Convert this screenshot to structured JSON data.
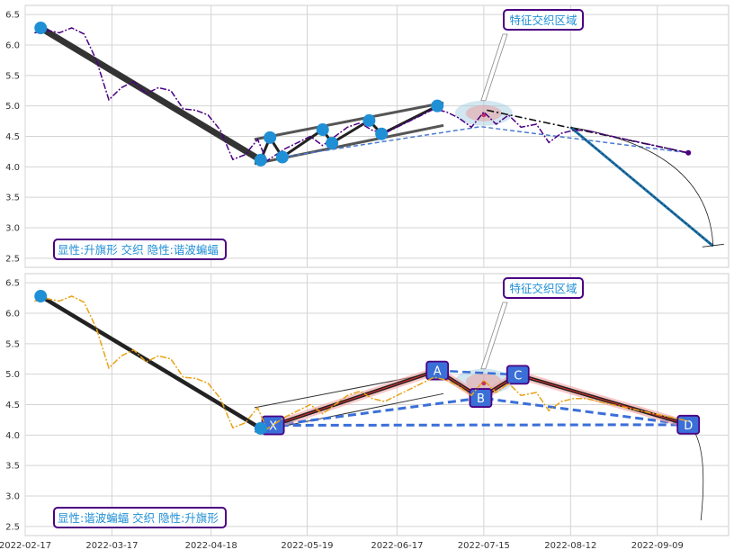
{
  "chart_data": [
    {
      "type": "line",
      "panel": "top",
      "ylim": [
        2.35,
        6.65
      ],
      "yticks": [
        "2.5",
        "3.0",
        "3.5",
        "4.0",
        "4.5",
        "5.0",
        "5.5",
        "6.0",
        "6.5"
      ],
      "grid": true,
      "annotation_box": "显性:升旗形 交织 隐性:谐波蝙蝠",
      "callout_label": "特征交织区域",
      "series": [
        {
          "style": "dashdot",
          "color": "#4b0082",
          "x": [
            "2022-02-20",
            "2022-02-24",
            "2022-02-28",
            "2022-03-04",
            "2022-03-08",
            "2022-03-12",
            "2022-03-16",
            "2022-03-20",
            "2022-03-24",
            "2022-03-28",
            "2022-04-01",
            "2022-04-05",
            "2022-04-09",
            "2022-04-13",
            "2022-04-17",
            "2022-04-21",
            "2022-04-25",
            "2022-04-29",
            "2022-05-03",
            "2022-05-06",
            "2022-05-09",
            "2022-05-12",
            "2022-05-16",
            "2022-05-20",
            "2022-05-24",
            "2022-05-28",
            "2022-06-01",
            "2022-06-05",
            "2022-06-09",
            "2022-06-13",
            "2022-06-17",
            "2022-06-21",
            "2022-06-25",
            "2022-06-29",
            "2022-07-03",
            "2022-07-07",
            "2022-07-11",
            "2022-07-15",
            "2022-07-19",
            "2022-07-23",
            "2022-07-27",
            "2022-08-01",
            "2022-08-05",
            "2022-08-09",
            "2022-08-13",
            "2022-08-17",
            "2022-08-21",
            "2022-09-19"
          ],
          "y": [
            6.2,
            6.24,
            6.2,
            6.28,
            6.18,
            5.75,
            5.1,
            5.3,
            5.4,
            5.2,
            5.3,
            5.25,
            4.95,
            4.93,
            4.85,
            4.6,
            4.12,
            4.2,
            4.45,
            4.1,
            4.2,
            4.3,
            4.4,
            4.5,
            4.35,
            4.5,
            4.65,
            4.72,
            4.6,
            4.55,
            4.65,
            4.75,
            4.85,
            4.95,
            4.9,
            4.8,
            4.65,
            4.9,
            4.7,
            4.85,
            4.65,
            4.7,
            4.4,
            4.55,
            4.6,
            4.6,
            4.55,
            4.23
          ]
        }
      ],
      "points": [
        {
          "x": "2022-02-22",
          "y": 6.28
        },
        {
          "x": "2022-05-04",
          "y": 4.11
        },
        {
          "x": "2022-05-07",
          "y": 4.48
        },
        {
          "x": "2022-05-11",
          "y": 4.16
        },
        {
          "x": "2022-05-24",
          "y": 4.61
        },
        {
          "x": "2022-05-27",
          "y": 4.39
        },
        {
          "x": "2022-06-08",
          "y": 4.76
        },
        {
          "x": "2022-06-12",
          "y": 4.54
        },
        {
          "x": "2022-06-30",
          "y": 5.0
        }
      ],
      "projection_end": {
        "x": "2022-09-27",
        "y": 2.7
      }
    },
    {
      "type": "line",
      "panel": "bottom",
      "xlim": [
        "2022-02-17",
        "2022-10-02"
      ],
      "xticks": [
        "2022-02-17",
        "2022-03-17",
        "2022-04-18",
        "2022-05-19",
        "2022-06-17",
        "2022-07-15",
        "2022-08-12",
        "2022-09-09"
      ],
      "ylim": [
        2.35,
        6.65
      ],
      "yticks": [
        "2.5",
        "3.0",
        "3.5",
        "4.0",
        "4.5",
        "5.0",
        "5.5",
        "6.0",
        "6.5"
      ],
      "grid": true,
      "annotation_box": "显性:谐波蝙蝠 交织 隐性:升旗形",
      "callout_label": "特征交织区域",
      "series": [
        {
          "style": "dashdot",
          "color": "#e8a317",
          "x": [
            "2022-02-20",
            "2022-02-24",
            "2022-02-28",
            "2022-03-04",
            "2022-03-08",
            "2022-03-12",
            "2022-03-16",
            "2022-03-20",
            "2022-03-24",
            "2022-03-28",
            "2022-04-01",
            "2022-04-05",
            "2022-04-09",
            "2022-04-13",
            "2022-04-17",
            "2022-04-21",
            "2022-04-25",
            "2022-04-29",
            "2022-05-03",
            "2022-05-06",
            "2022-05-09",
            "2022-05-12",
            "2022-05-16",
            "2022-05-20",
            "2022-05-24",
            "2022-05-28",
            "2022-06-01",
            "2022-06-05",
            "2022-06-09",
            "2022-06-13",
            "2022-06-17",
            "2022-06-21",
            "2022-06-25",
            "2022-06-29",
            "2022-07-03",
            "2022-07-07",
            "2022-07-11",
            "2022-07-15",
            "2022-07-19",
            "2022-07-23",
            "2022-07-27",
            "2022-08-01",
            "2022-08-05",
            "2022-08-09",
            "2022-08-13",
            "2022-08-17",
            "2022-08-21",
            "2022-09-19"
          ],
          "y": [
            6.2,
            6.24,
            6.2,
            6.28,
            6.18,
            5.75,
            5.1,
            5.3,
            5.4,
            5.2,
            5.3,
            5.25,
            4.95,
            4.93,
            4.85,
            4.6,
            4.12,
            4.2,
            4.45,
            4.1,
            4.2,
            4.3,
            4.4,
            4.5,
            4.35,
            4.5,
            4.65,
            4.72,
            4.6,
            4.55,
            4.65,
            4.75,
            4.85,
            4.95,
            4.9,
            4.8,
            4.65,
            4.9,
            4.7,
            4.85,
            4.65,
            4.7,
            4.4,
            4.55,
            4.6,
            4.6,
            4.55,
            4.23
          ]
        }
      ],
      "xabcd": [
        {
          "label": "X",
          "x": "2022-05-08",
          "y": 4.16
        },
        {
          "label": "A",
          "x": "2022-06-30",
          "y": 5.06
        },
        {
          "label": "B",
          "x": "2022-07-14",
          "y": 4.61
        },
        {
          "label": "C",
          "x": "2022-07-26",
          "y": 4.99
        },
        {
          "label": "D",
          "x": "2022-09-19",
          "y": 4.17
        }
      ],
      "points": [
        {
          "x": "2022-02-22",
          "y": 6.28
        },
        {
          "x": "2022-05-04",
          "y": 4.11
        }
      ]
    }
  ]
}
